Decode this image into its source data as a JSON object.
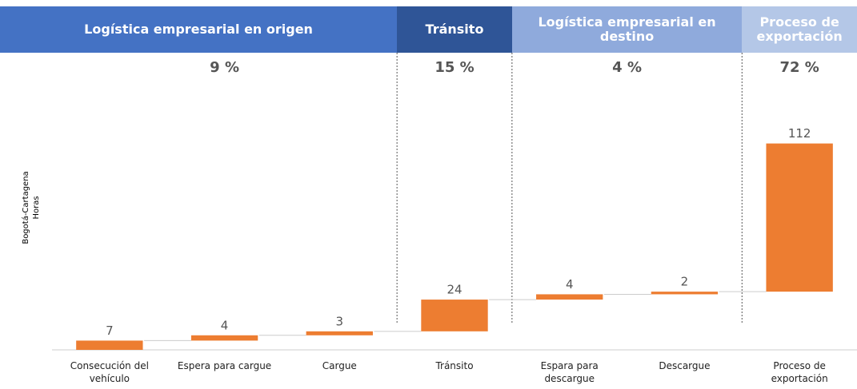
{
  "chart_data": {
    "type": "waterfall",
    "y_label": [
      "Bogotá-Cartagena",
      "Horas"
    ],
    "groups": [
      {
        "title": "Logística empresarial en origen",
        "share": 9,
        "share_label": "9 %",
        "color": "#4472c4"
      },
      {
        "title": "Tránsito",
        "share": 15,
        "share_label": "15 %",
        "color": "#2f5597"
      },
      {
        "title": "Logística empresarial en destino",
        "share": 4,
        "share_label": "4 %",
        "color": "#8faadc"
      },
      {
        "title": "Proceso de exportación",
        "share": 72,
        "share_label": "72 %",
        "color": "#b4c7e7"
      }
    ],
    "categories": [
      "Consecución del vehículo",
      "Espera para cargue",
      "Cargue",
      "Tránsito",
      "Espara para descargue",
      "Descargue",
      "Proceso de exportación"
    ],
    "values": [
      7,
      4,
      3,
      24,
      4,
      2,
      112
    ],
    "color": "#ed7d31",
    "ylim": [
      0,
      160
    ]
  }
}
